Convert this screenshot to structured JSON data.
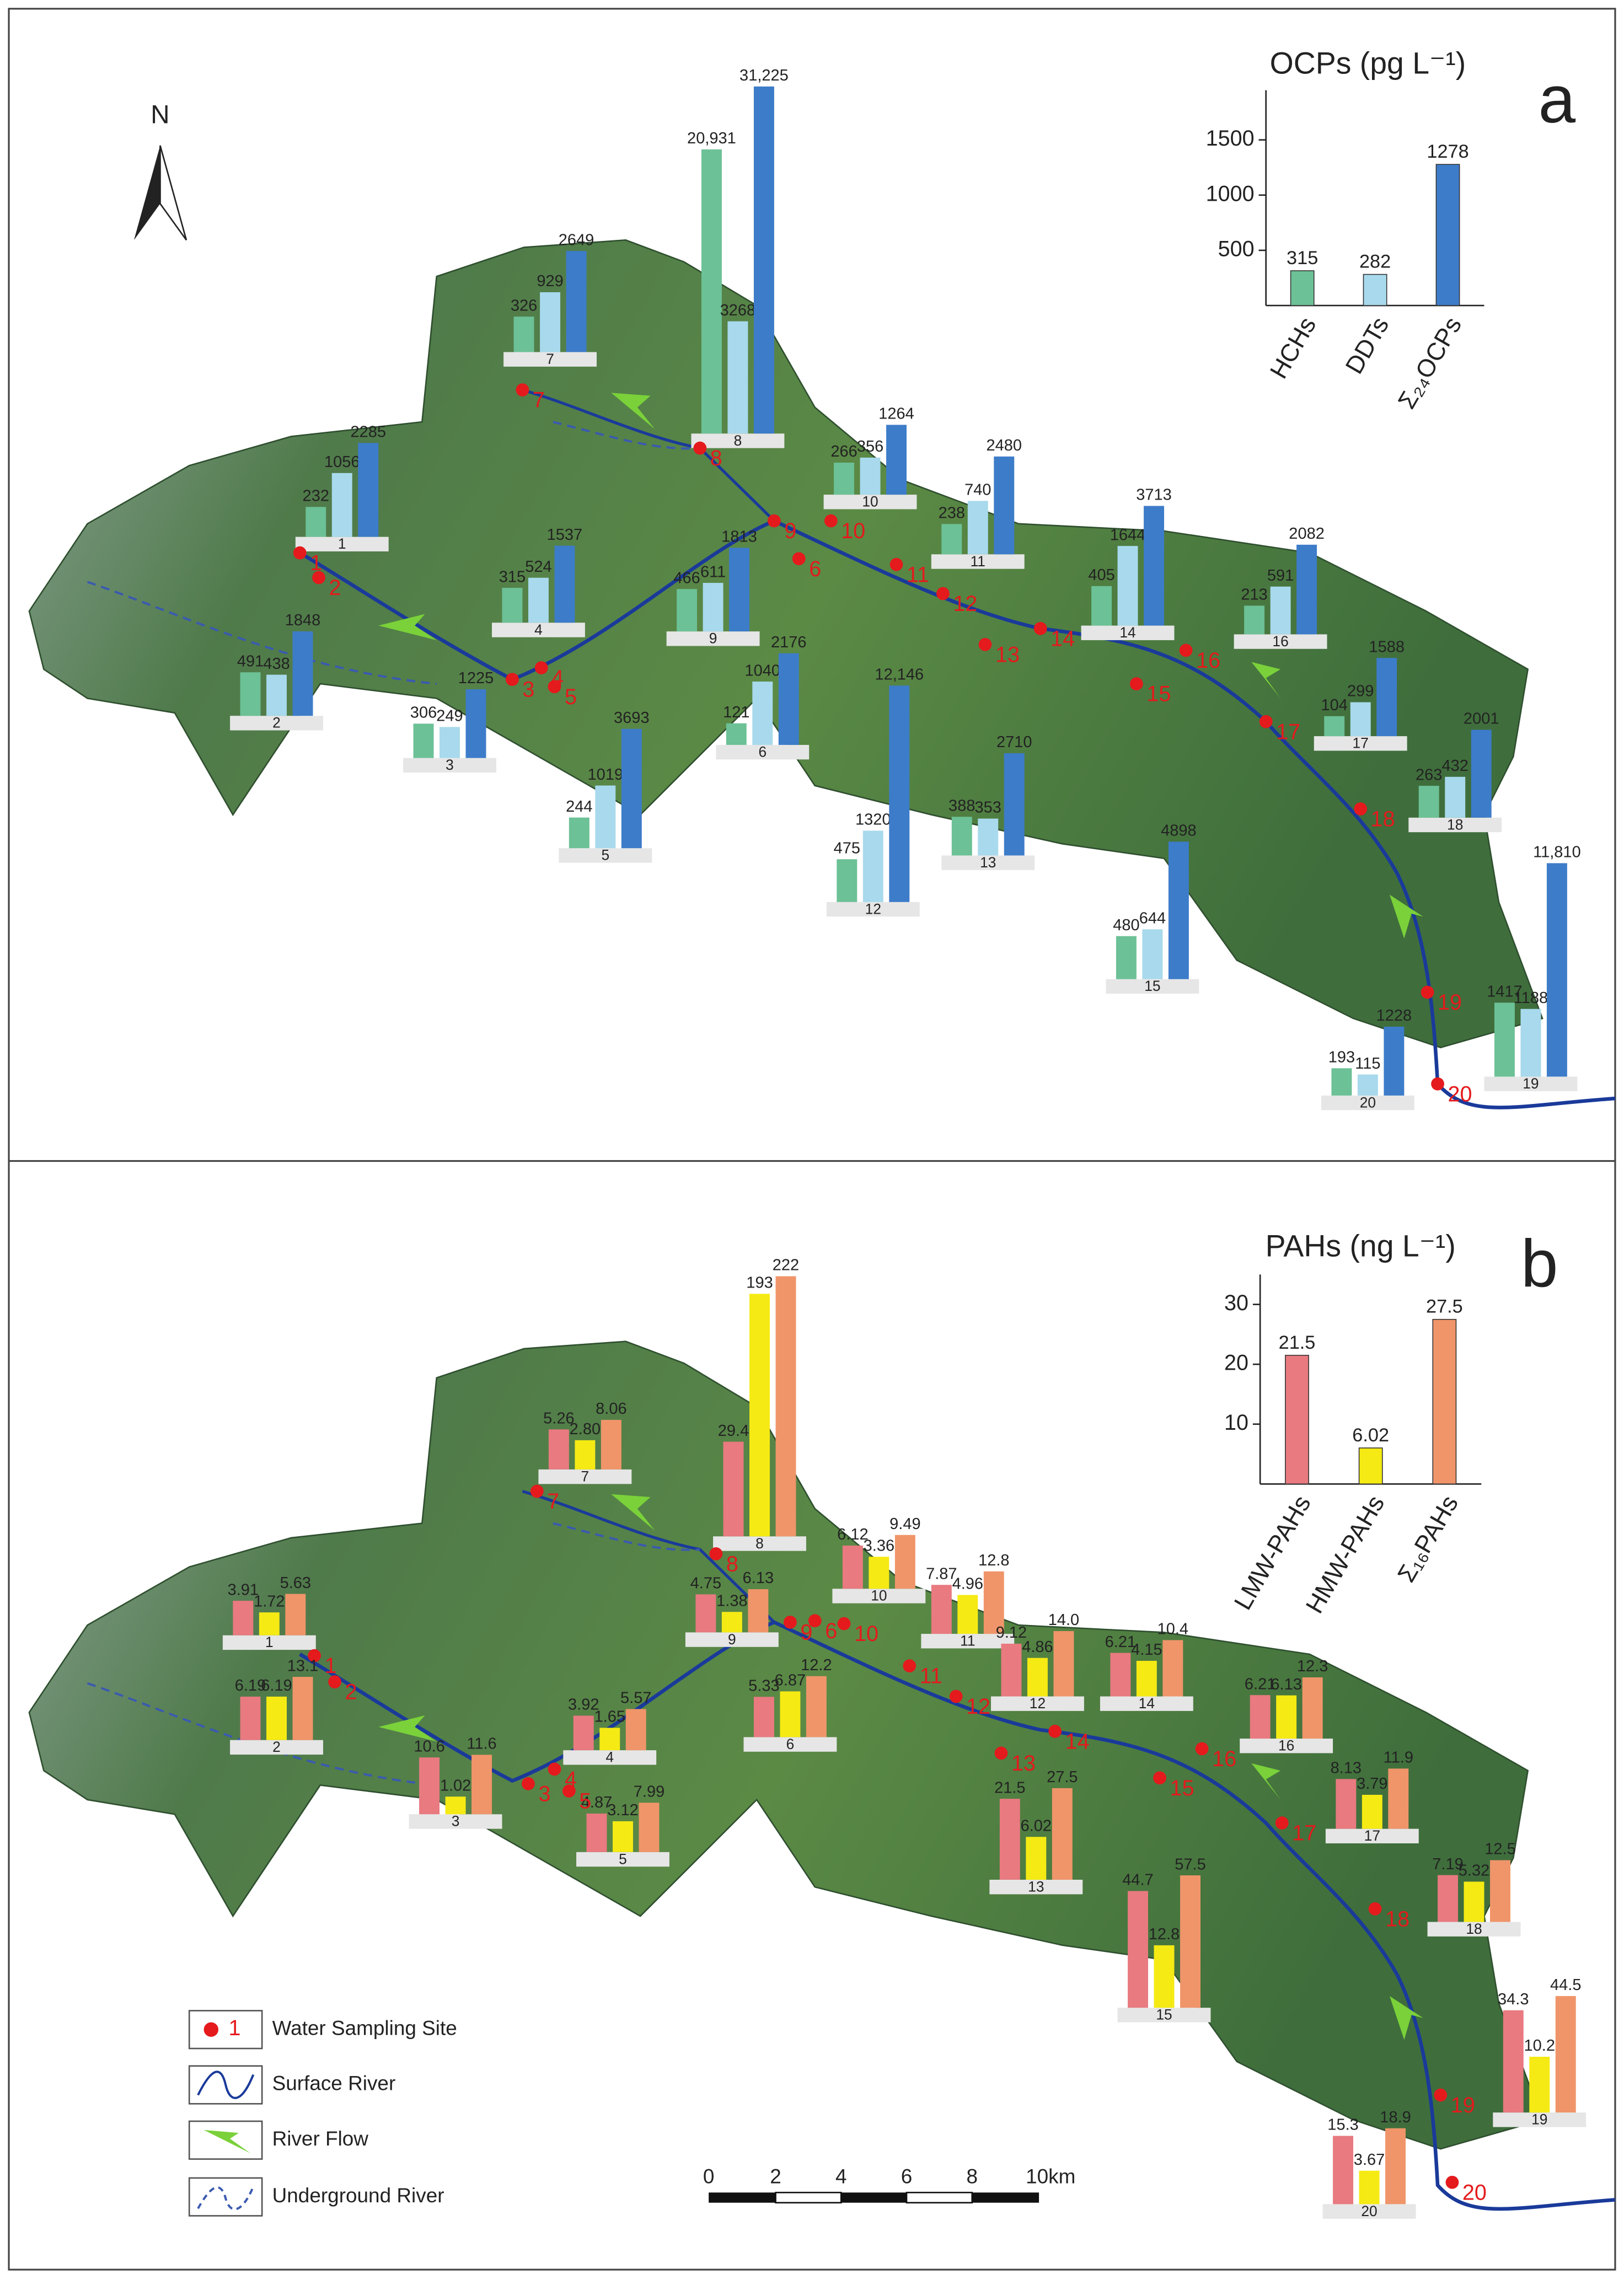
{
  "panels": [
    {
      "label": "a",
      "bar_scale": "sqrt",
      "inset": {
        "title": "OCPs (pg L⁻¹)",
        "categories": [
          "HCHs",
          "DDTs",
          "Σ₂₄OCPs"
        ],
        "values": [
          315,
          282,
          1278
        ],
        "colors": [
          "#6cc196",
          "#a8d9ec",
          "#3d7cc9"
        ],
        "ylim": [
          0,
          1950
        ],
        "yticks": [
          500,
          1000,
          1500
        ]
      },
      "sites": [
        {
          "id": "1",
          "values": [
            232,
            1056,
            2285
          ]
        },
        {
          "id": "2",
          "values": [
            491,
            438,
            1848
          ]
        },
        {
          "id": "3",
          "values": [
            306,
            249,
            1225
          ]
        },
        {
          "id": "4",
          "values": [
            315,
            524,
            1537
          ]
        },
        {
          "id": "5",
          "values": [
            244,
            1019,
            3693
          ]
        },
        {
          "id": "6",
          "values": [
            121,
            1040,
            2176
          ]
        },
        {
          "id": "7",
          "values": [
            326,
            929,
            2649
          ]
        },
        {
          "id": "8",
          "values": [
            20931,
            3268,
            31225
          ],
          "value_labels": [
            "20,931",
            "3268",
            "31,225"
          ]
        },
        {
          "id": "9",
          "values": [
            466,
            611,
            1813
          ]
        },
        {
          "id": "10",
          "values": [
            266,
            356,
            1264
          ]
        },
        {
          "id": "11",
          "values": [
            238,
            740,
            2480
          ]
        },
        {
          "id": "12",
          "values": [
            475,
            1320,
            12146
          ],
          "value_labels": [
            "475",
            "1320",
            "12,146"
          ]
        },
        {
          "id": "13",
          "values": [
            388,
            353,
            2710
          ]
        },
        {
          "id": "14",
          "values": [
            405,
            1644,
            3713
          ]
        },
        {
          "id": "15",
          "values": [
            480,
            644,
            4898
          ]
        },
        {
          "id": "16",
          "values": [
            213,
            591,
            2082
          ]
        },
        {
          "id": "17",
          "values": [
            104,
            299,
            1588
          ]
        },
        {
          "id": "18",
          "values": [
            263,
            432,
            2001
          ]
        },
        {
          "id": "19",
          "values": [
            1417,
            1188,
            11810
          ],
          "value_labels": [
            "1417",
            "1188",
            "11,810"
          ]
        },
        {
          "id": "20",
          "values": [
            193,
            115,
            1228
          ]
        }
      ]
    },
    {
      "label": "b",
      "bar_scale": "sqrt",
      "inset": {
        "title": "PAHs (ng L⁻¹)",
        "categories": [
          "LMW-PAHs",
          "HMW-PAHs",
          "Σ₁₆PAHs"
        ],
        "values": [
          21.5,
          6.02,
          27.5
        ],
        "colors": [
          "#e87a80",
          "#f5ea14",
          "#f0956a"
        ],
        "ylim": [
          0,
          35
        ],
        "yticks": [
          10,
          20,
          30
        ]
      },
      "sites": [
        {
          "id": "1",
          "values": [
            3.91,
            1.72,
            5.63
          ]
        },
        {
          "id": "2",
          "values": [
            6.19,
            6.19,
            13.1
          ]
        },
        {
          "id": "3",
          "values": [
            10.6,
            1.02,
            11.6
          ]
        },
        {
          "id": "4",
          "values": [
            3.92,
            1.65,
            5.57
          ]
        },
        {
          "id": "5",
          "values": [
            4.87,
            3.12,
            7.99
          ]
        },
        {
          "id": "6",
          "values": [
            5.33,
            6.87,
            12.2
          ]
        },
        {
          "id": "7",
          "values": [
            5.26,
            2.8,
            8.06
          ],
          "value_labels": [
            "5.26",
            "2.80",
            "8.06"
          ]
        },
        {
          "id": "8",
          "values": [
            29.4,
            193,
            222
          ]
        },
        {
          "id": "9",
          "values": [
            4.75,
            1.38,
            6.13
          ]
        },
        {
          "id": "10",
          "values": [
            6.12,
            3.36,
            9.49
          ]
        },
        {
          "id": "11",
          "values": [
            7.87,
            4.96,
            12.8
          ]
        },
        {
          "id": "12",
          "values": [
            9.12,
            4.86,
            14
          ],
          "value_labels": [
            "9.12",
            "4.86",
            "14.0"
          ]
        },
        {
          "id": "13",
          "values": [
            21.5,
            6.02,
            27.5
          ]
        },
        {
          "id": "14",
          "values": [
            6.21,
            4.15,
            10.4
          ]
        },
        {
          "id": "15",
          "values": [
            44.7,
            12.8,
            57.5
          ]
        },
        {
          "id": "16",
          "values": [
            6.21,
            6.13,
            12.3
          ]
        },
        {
          "id": "17",
          "values": [
            8.13,
            3.79,
            11.9
          ]
        },
        {
          "id": "18",
          "values": [
            7.19,
            5.32,
            12.5
          ]
        },
        {
          "id": "19",
          "values": [
            34.3,
            10.2,
            44.5
          ]
        },
        {
          "id": "20",
          "values": [
            15.3,
            3.67,
            18.9
          ]
        }
      ]
    }
  ],
  "north": "N",
  "legend": {
    "site_example": "1",
    "items": [
      "Water Sampling Site",
      "Surface River",
      "River Flow",
      "Underground River"
    ]
  },
  "scale_bar": [
    "0",
    "2",
    "4",
    "6",
    "8",
    "10km"
  ]
}
